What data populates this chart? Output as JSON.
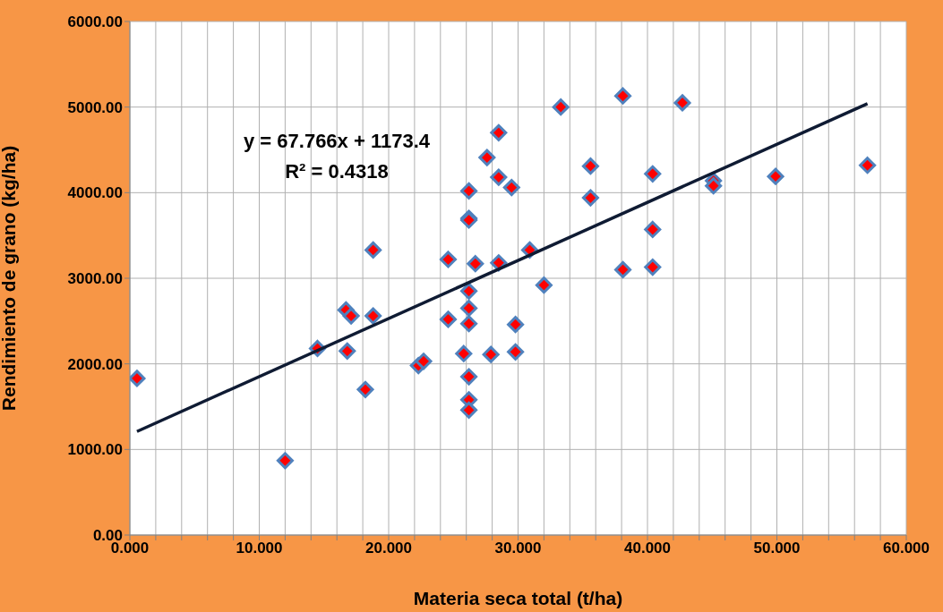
{
  "chart_data": {
    "type": "scatter",
    "xlabel": "Materia seca total (t/ha)",
    "ylabel": "Rendimiento de grano (kg/ha)",
    "annotations": [
      "y = 67.766x + 1173.4",
      "R² = 0.4318"
    ],
    "xlim": [
      0,
      60
    ],
    "ylim": [
      0,
      6000
    ],
    "xticks": [
      {
        "value": 0,
        "label": "0.000"
      },
      {
        "value": 2,
        "label": null
      },
      {
        "value": 4,
        "label": null
      },
      {
        "value": 6,
        "label": null
      },
      {
        "value": 8,
        "label": null
      },
      {
        "value": 10,
        "label": "10.000"
      },
      {
        "value": 12,
        "label": null
      },
      {
        "value": 14,
        "label": null
      },
      {
        "value": 16,
        "label": null
      },
      {
        "value": 18,
        "label": null
      },
      {
        "value": 20,
        "label": "20.000"
      },
      {
        "value": 22,
        "label": null
      },
      {
        "value": 24,
        "label": null
      },
      {
        "value": 26,
        "label": null
      },
      {
        "value": 28,
        "label": null
      },
      {
        "value": 30,
        "label": "30.000"
      },
      {
        "value": 32,
        "label": null
      },
      {
        "value": 34,
        "label": null
      },
      {
        "value": 36,
        "label": null
      },
      {
        "value": 38,
        "label": null
      },
      {
        "value": 40,
        "label": "40.000"
      },
      {
        "value": 42,
        "label": null
      },
      {
        "value": 44,
        "label": null
      },
      {
        "value": 46,
        "label": null
      },
      {
        "value": 48,
        "label": null
      },
      {
        "value": 50,
        "label": "50.000"
      },
      {
        "value": 52,
        "label": null
      },
      {
        "value": 54,
        "label": null
      },
      {
        "value": 56,
        "label": null
      },
      {
        "value": 58,
        "label": null
      },
      {
        "value": 60,
        "label": "60.000"
      }
    ],
    "yticks": [
      {
        "value": 0,
        "label": "0.00"
      },
      {
        "value": 1000,
        "label": "1000.00"
      },
      {
        "value": 2000,
        "label": "2000.00"
      },
      {
        "value": 3000,
        "label": "3000.00"
      },
      {
        "value": 4000,
        "label": "4000.00"
      },
      {
        "value": 5000,
        "label": "5000.00"
      },
      {
        "value": 6000,
        "label": "6000.00"
      }
    ],
    "grid": true,
    "legend": false,
    "marker": "diamond",
    "series": [
      {
        "type": "scatter",
        "color": "#ff0000",
        "x": [
          0.55,
          12.0,
          14.5,
          16.7,
          17.1,
          16.8,
          18.2,
          18.8,
          18.8,
          22.3,
          22.7,
          24.6,
          24.6,
          25.8,
          26.2,
          26.2,
          26.2,
          26.2,
          26.2,
          26.2,
          26.2,
          26.2,
          26.2,
          26.7,
          27.6,
          27.9,
          28.5,
          28.5,
          28.5,
          29.5,
          29.8,
          29.8,
          30.9,
          32.0,
          33.3,
          35.6,
          35.6,
          38.1,
          38.1,
          40.4,
          40.4,
          40.4,
          42.7,
          45.1,
          45.1,
          49.9,
          57.0
        ],
        "values": [
          1830,
          870,
          2180,
          2630,
          2560,
          2150,
          1700,
          3330,
          2560,
          1980,
          2030,
          3220,
          2520,
          2120,
          4020,
          3700,
          3680,
          2850,
          2650,
          2470,
          1850,
          1580,
          1460,
          3170,
          4410,
          2110,
          4700,
          4180,
          3180,
          4060,
          2460,
          2140,
          3330,
          2920,
          5000,
          4310,
          3940,
          5130,
          3100,
          4220,
          3570,
          3130,
          5050,
          4140,
          4080,
          4190,
          4320
        ]
      },
      {
        "type": "line",
        "color": "#0f1b33",
        "marker": "none",
        "x": [
          0.55,
          57.0
        ],
        "values": [
          1210,
          5040
        ]
      }
    ]
  }
}
